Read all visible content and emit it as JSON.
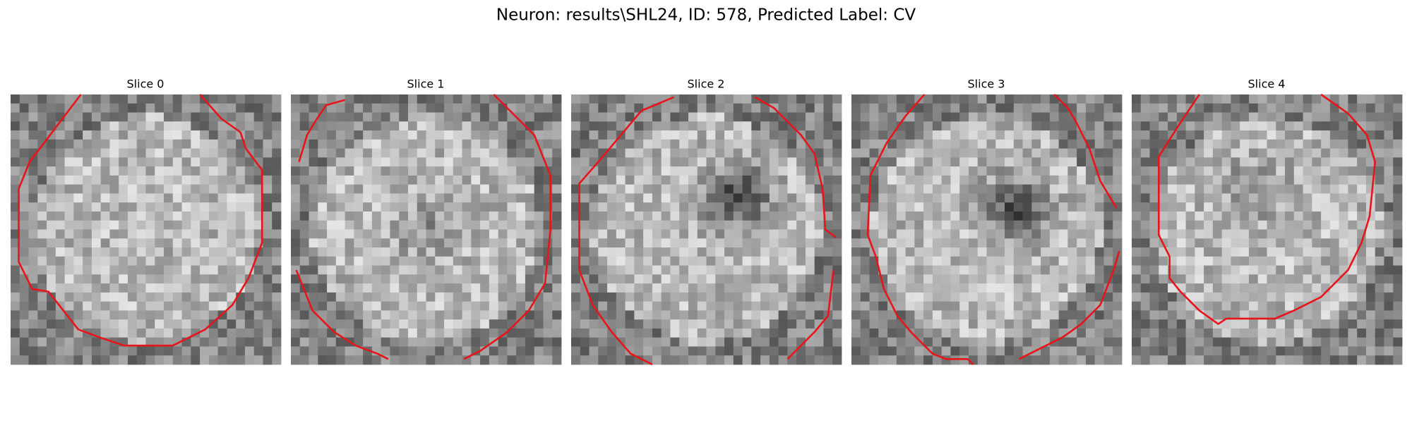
{
  "title": "Neuron: results\\SHL24, ID: 578, Predicted Label: CV",
  "panels": [
    {
      "title": "Slice 0"
    },
    {
      "title": "Slice 1"
    },
    {
      "title": "Slice 2"
    },
    {
      "title": "Slice 3"
    },
    {
      "title": "Slice 4"
    }
  ]
}
